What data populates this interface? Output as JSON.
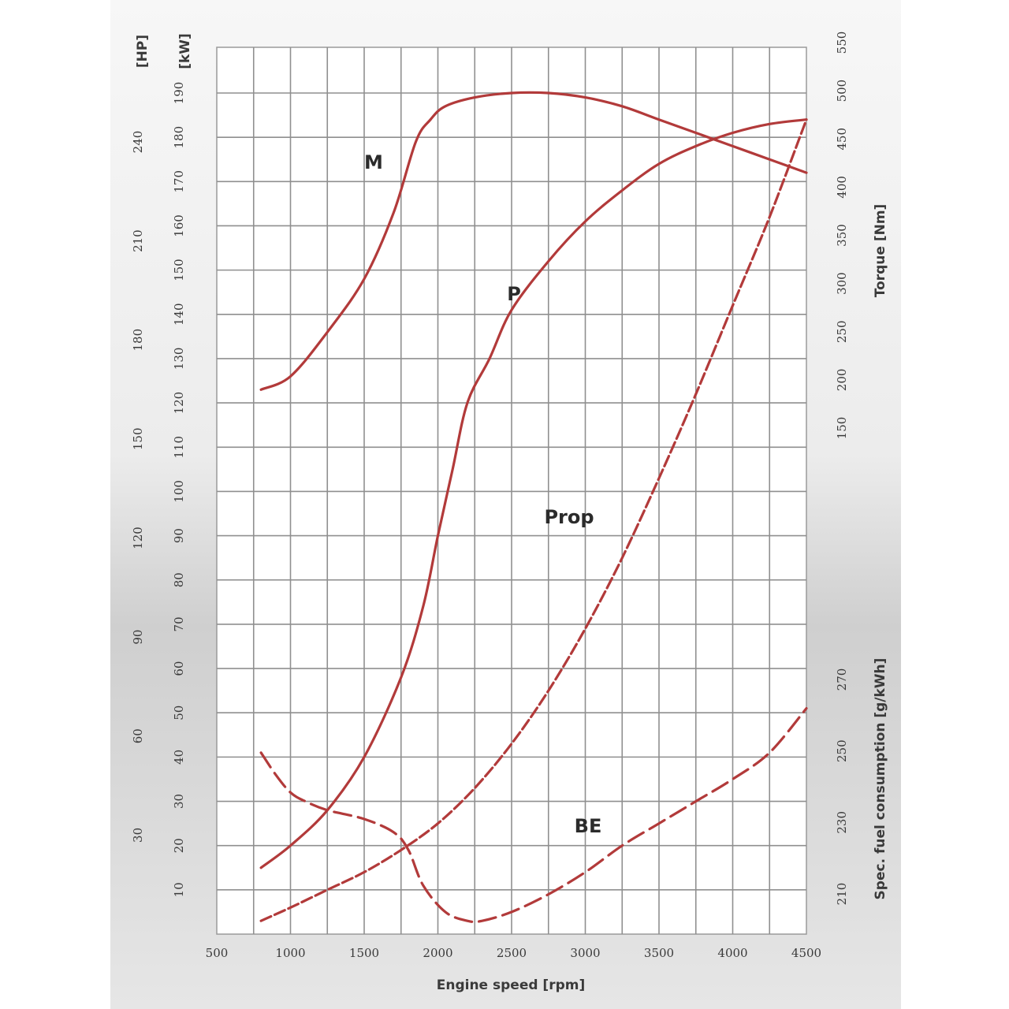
{
  "chart_data": {
    "type": "line",
    "xlabel": "Engine speed [rpm]",
    "xlim": [
      500,
      4500
    ],
    "xticks": [
      500,
      1000,
      1500,
      2000,
      2500,
      3000,
      3500,
      4000,
      4500
    ],
    "axes": {
      "hp": {
        "label": "[HP]",
        "ticks": [
          30,
          60,
          90,
          120,
          150,
          180,
          210,
          240
        ]
      },
      "kw": {
        "label": "[kW]",
        "ticks": [
          10,
          20,
          30,
          40,
          50,
          60,
          70,
          80,
          90,
          100,
          110,
          120,
          130,
          140,
          150,
          160,
          170,
          180,
          190
        ]
      },
      "torque": {
        "label": "Torque [Nm]",
        "ticks": [
          150,
          200,
          250,
          300,
          350,
          400,
          450,
          500,
          550
        ]
      },
      "be": {
        "label": "Spec. fuel consumption [g/kWh]",
        "ticks": [
          210,
          230,
          250,
          270
        ]
      }
    },
    "series": [
      {
        "name": "M",
        "style": "solid",
        "color": "#b23a3a",
        "x": [
          800,
          1000,
          1250,
          1500,
          1700,
          1850,
          1950,
          2050,
          2250,
          2500,
          2750,
          3000,
          3250,
          3500,
          3750,
          4000,
          4250,
          4500
        ],
        "y": [
          123,
          126,
          136,
          148,
          163,
          179,
          184,
          187,
          189,
          190,
          190,
          189,
          187,
          184,
          181,
          178,
          175,
          172
        ]
      },
      {
        "name": "P",
        "style": "solid",
        "color": "#b23a3a",
        "x": [
          800,
          1000,
          1250,
          1500,
          1750,
          1900,
          2000,
          2100,
          2200,
          2350,
          2500,
          2750,
          3000,
          3250,
          3500,
          3750,
          4000,
          4250,
          4500
        ],
        "y": [
          15,
          20,
          28,
          40,
          58,
          74,
          90,
          105,
          120,
          130,
          141,
          152,
          161,
          168,
          174,
          178,
          181,
          183,
          184
        ]
      },
      {
        "name": "Prop",
        "style": "dashed",
        "color": "#b23a3a",
        "x": [
          800,
          1000,
          1250,
          1500,
          1750,
          2000,
          2250,
          2500,
          2750,
          3000,
          3250,
          3500,
          3750,
          4000,
          4250,
          4500
        ],
        "y": [
          3,
          6,
          10,
          14,
          19,
          25,
          33,
          43,
          55,
          69,
          85,
          103,
          122,
          142,
          162,
          184
        ]
      },
      {
        "name": "BE",
        "style": "dashed",
        "color": "#b23a3a",
        "x": [
          800,
          900,
          1000,
          1100,
          1250,
          1500,
          1700,
          1800,
          1900,
          2050,
          2200,
          2300,
          2500,
          2750,
          3000,
          3250,
          3500,
          3750,
          4000,
          4250,
          4500
        ],
        "y": [
          41,
          36,
          32,
          30,
          28,
          26,
          23,
          19,
          11,
          5,
          3,
          3,
          5,
          9,
          14,
          20,
          25,
          30,
          35,
          41,
          51
        ]
      }
    ],
    "grid": true,
    "annotations": [
      "M",
      "P",
      "Prop",
      "BE"
    ]
  }
}
